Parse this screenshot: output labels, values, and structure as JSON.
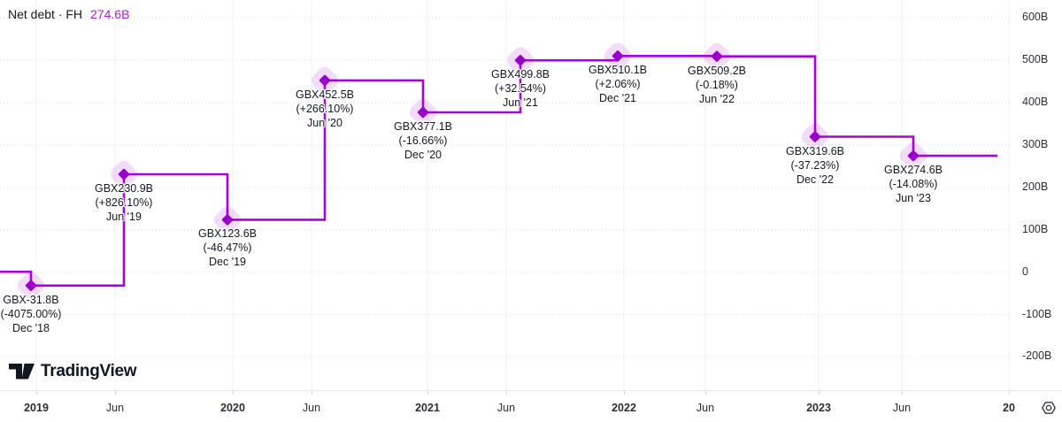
{
  "header": {
    "series_title": "Net debt · FH",
    "series_value": "274.6B"
  },
  "branding": {
    "logo_text": "TradingView"
  },
  "chart_data": {
    "type": "line",
    "variant": "step-line-with-markers",
    "title": "Net debt · FH",
    "unit": "GBX billions",
    "legend_position": "top-left",
    "grid": true,
    "lead_in_value": 0.8,
    "points": [
      {
        "date": "Dec '18",
        "value": -31.8,
        "value_label": "GBX-31.8B",
        "change_label": "(-4075.00%)"
      },
      {
        "date": "Jun '19",
        "value": 230.9,
        "value_label": "GBX230.9B",
        "change_label": "(+826.10%)"
      },
      {
        "date": "Dec '19",
        "value": 123.6,
        "value_label": "GBX123.6B",
        "change_label": "(-46.47%)"
      },
      {
        "date": "Jun '20",
        "value": 452.5,
        "value_label": "GBX452.5B",
        "change_label": "(+266.10%)"
      },
      {
        "date": "Dec '20",
        "value": 377.1,
        "value_label": "GBX377.1B",
        "change_label": "(-16.66%)"
      },
      {
        "date": "Jun '21",
        "value": 499.8,
        "value_label": "GBX499.8B",
        "change_label": "(+32.54%)"
      },
      {
        "date": "Dec '21",
        "value": 510.1,
        "value_label": "GBX510.1B",
        "change_label": "(+2.06%)"
      },
      {
        "date": "Jun '22",
        "value": 509.2,
        "value_label": "GBX509.2B",
        "change_label": "(-0.18%)"
      },
      {
        "date": "Dec '22",
        "value": 319.6,
        "value_label": "GBX319.6B",
        "change_label": "(-37.23%)"
      },
      {
        "date": "Jun '23",
        "value": 274.6,
        "value_label": "GBX274.6B",
        "change_label": "(-14.08%)"
      }
    ],
    "x_axis": {
      "tick_labels": [
        "2019",
        "Jun",
        "2020",
        "Jun",
        "2021",
        "Jun",
        "2022",
        "Jun",
        "2023",
        "Jun",
        "20"
      ]
    },
    "y_axis": {
      "tick_labels": [
        "600B",
        "500B",
        "400B",
        "300B",
        "200B",
        "100B",
        "0",
        "-100B",
        "-200B"
      ],
      "tick_values": [
        600,
        500,
        400,
        300,
        200,
        100,
        0,
        -100,
        -200
      ],
      "range": [
        -260,
        620
      ]
    },
    "colors": {
      "line": "#A800DE",
      "marker": "#9900CC",
      "halo": "rgba(168,0,222,0.14)",
      "value_text": "#A520D6",
      "label_text": "#131722",
      "axis_text": "#2A2E39"
    }
  },
  "footer": {
    "settings_icon": "gear-icon"
  }
}
